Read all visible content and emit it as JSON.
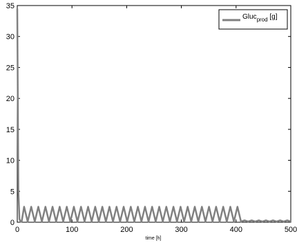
{
  "chart_data": {
    "type": "line",
    "title": "",
    "xlabel": "time [h]",
    "ylabel": "",
    "xlim": [
      0,
      500
    ],
    "ylim": [
      0,
      35
    ],
    "x_ticks": [
      0,
      100,
      200,
      300,
      400,
      500
    ],
    "y_ticks": [
      0,
      5,
      10,
      15,
      20,
      25,
      30,
      35
    ],
    "grid": false,
    "legend": {
      "position": "top-right",
      "label_main": "Gluc",
      "label_sub": "prod",
      "label_unit": " [g]"
    },
    "series": [
      {
        "name": "Gluc_prod [g]",
        "color": "#808080",
        "x": [
          0,
          1,
          2,
          4,
          6,
          8,
          12.5,
          19,
          25.5,
          32,
          38.5,
          45,
          51.5,
          58,
          64.5,
          71,
          77.5,
          84,
          90.5,
          97,
          103.5,
          110,
          116.5,
          123,
          129.5,
          136,
          142.5,
          149,
          155.5,
          162,
          168.5,
          175,
          181.5,
          188,
          194.5,
          201,
          207.5,
          214,
          220.5,
          227,
          233.5,
          240,
          246.5,
          253,
          259.5,
          266,
          272.5,
          279,
          285.5,
          292,
          298.5,
          305,
          311.5,
          318,
          324.5,
          331,
          337.5,
          344,
          350.5,
          357,
          363.5,
          370,
          376.5,
          383,
          389.5,
          396,
          402.5,
          409,
          415.5,
          422,
          428.5,
          435,
          441.5,
          448,
          454.5,
          461,
          467.5,
          474,
          480.5,
          487,
          493.5,
          500
        ],
        "y": [
          34.5,
          20,
          5,
          0.5,
          0.1,
          0.1,
          2.5,
          0.1,
          2.5,
          0.1,
          2.5,
          0.1,
          2.5,
          0.1,
          2.5,
          0.1,
          2.5,
          0.1,
          2.5,
          0.1,
          2.5,
          0.1,
          2.5,
          0.1,
          2.5,
          0.1,
          2.5,
          0.1,
          2.5,
          0.1,
          2.5,
          0.1,
          2.5,
          0.1,
          2.5,
          0.1,
          2.5,
          0.1,
          2.5,
          0.1,
          2.5,
          0.1,
          2.5,
          0.1,
          2.5,
          0.1,
          2.5,
          0.1,
          2.5,
          0.1,
          2.5,
          0.1,
          2.5,
          0.1,
          2.5,
          0.1,
          2.5,
          0.1,
          2.5,
          0.1,
          2.5,
          0.1,
          2.5,
          0.1,
          2.5,
          0.1,
          2.5,
          0.1,
          0.3,
          0.1,
          0.3,
          0.1,
          0.3,
          0.1,
          0.3,
          0.1,
          0.3,
          0.1,
          0.3,
          0.1,
          0.3,
          0.1
        ]
      }
    ]
  }
}
